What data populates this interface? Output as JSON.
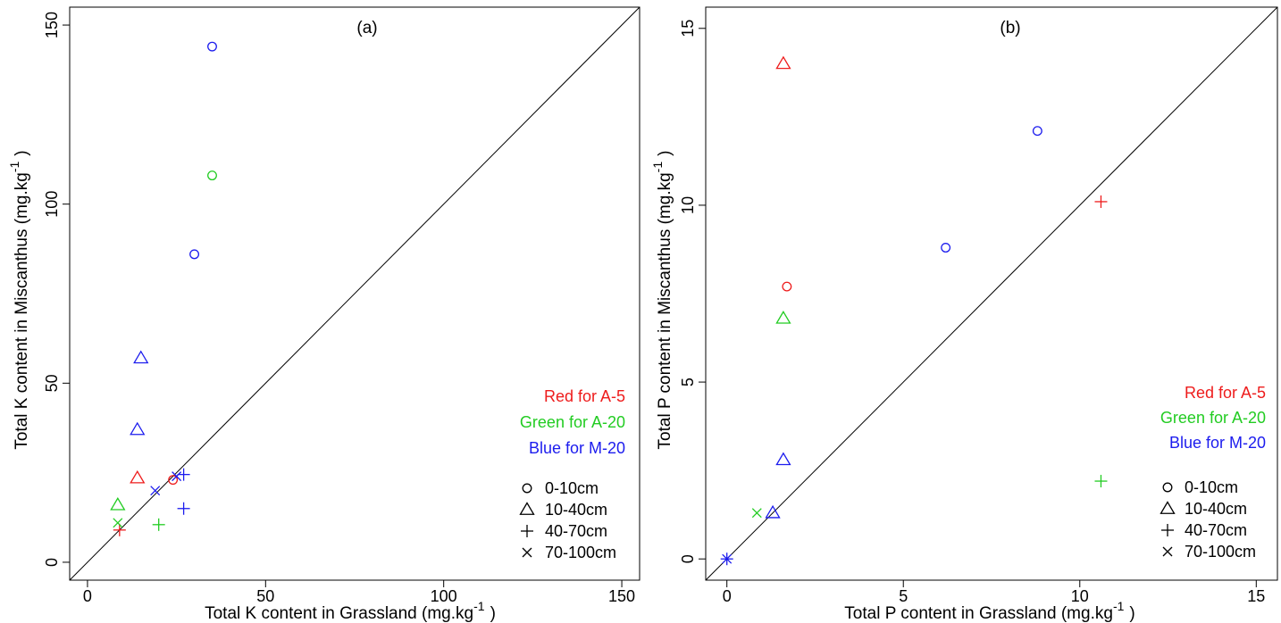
{
  "chart_data": [
    {
      "type": "scatter",
      "panel_label": "(a)",
      "xlabel": "Total K content in Grassland",
      "xlabel_unit": "(mg.kg",
      "xlabel_sup": "-1",
      "xlabel_close": ")",
      "ylabel": "Total K content in Miscanthus",
      "ylabel_unit": "(mg.kg",
      "ylabel_sup": "-1",
      "ylabel_close": ")",
      "xlim": [
        -5,
        155
      ],
      "ylim": [
        -5,
        155
      ],
      "xticks": [
        0,
        50,
        100,
        150
      ],
      "yticks": [
        0,
        50,
        100,
        150
      ],
      "reference_line": "y = x",
      "grid": false,
      "color_legend": [
        {
          "text": "Red for A-5",
          "color": "#ee1c1c"
        },
        {
          "text": "Green for A-20",
          "color": "#22cc22"
        },
        {
          "text": "Blue for M-20",
          "color": "#1c1cee"
        }
      ],
      "shape_legend": [
        {
          "text": "0-10cm",
          "symbol": "circle"
        },
        {
          "text": "10-40cm",
          "symbol": "triangle"
        },
        {
          "text": "40-70cm",
          "symbol": "plus"
        },
        {
          "text": "70-100cm",
          "symbol": "cross"
        }
      ],
      "legend_position": "bottom-right",
      "points": [
        {
          "x": 35,
          "y": 144,
          "site": "M-20",
          "depth": "0-10cm"
        },
        {
          "x": 35,
          "y": 108,
          "site": "A-20",
          "depth": "0-10cm"
        },
        {
          "x": 30,
          "y": 86,
          "site": "M-20",
          "depth": "0-10cm"
        },
        {
          "x": 24,
          "y": 23,
          "site": "A-5",
          "depth": "0-10cm"
        },
        {
          "x": 15,
          "y": 57,
          "site": "M-20",
          "depth": "10-40cm"
        },
        {
          "x": 14,
          "y": 37,
          "site": "M-20",
          "depth": "10-40cm"
        },
        {
          "x": 14,
          "y": 23.5,
          "site": "A-5",
          "depth": "10-40cm"
        },
        {
          "x": 8.5,
          "y": 16,
          "site": "A-20",
          "depth": "10-40cm"
        },
        {
          "x": 27,
          "y": 24.5,
          "site": "M-20",
          "depth": "40-70cm"
        },
        {
          "x": 27,
          "y": 15,
          "site": "M-20",
          "depth": "40-70cm"
        },
        {
          "x": 20,
          "y": 10.5,
          "site": "A-20",
          "depth": "40-70cm"
        },
        {
          "x": 9,
          "y": 9,
          "site": "A-5",
          "depth": "40-70cm"
        },
        {
          "x": 25,
          "y": 24,
          "site": "M-20",
          "depth": "70-100cm"
        },
        {
          "x": 19,
          "y": 20,
          "site": "M-20",
          "depth": "70-100cm"
        },
        {
          "x": 8.5,
          "y": 11,
          "site": "A-20",
          "depth": "70-100cm"
        }
      ]
    },
    {
      "type": "scatter",
      "panel_label": "(b)",
      "xlabel": "Total P content in Grassland",
      "xlabel_unit": "(mg.kg",
      "xlabel_sup": "-1",
      "xlabel_close": ")",
      "ylabel": "Total P content in Miscanthus",
      "ylabel_unit": "(mg.kg",
      "ylabel_sup": "-1",
      "ylabel_close": ")",
      "xlim": [
        -0.6,
        15.6
      ],
      "ylim": [
        -0.6,
        15.6
      ],
      "xticks": [
        0,
        5,
        10,
        15
      ],
      "yticks": [
        0,
        5,
        10,
        15
      ],
      "reference_line": "y = x",
      "grid": false,
      "color_legend": [
        {
          "text": "Red for A-5",
          "color": "#ee1c1c"
        },
        {
          "text": "Green for A-20",
          "color": "#22cc22"
        },
        {
          "text": "Blue for M-20",
          "color": "#1c1cee"
        }
      ],
      "shape_legend": [
        {
          "text": "0-10cm",
          "symbol": "circle"
        },
        {
          "text": "10-40cm",
          "symbol": "triangle"
        },
        {
          "text": "40-70cm",
          "symbol": "plus"
        },
        {
          "text": "70-100cm",
          "symbol": "cross"
        }
      ],
      "legend_position": "bottom-right",
      "points": [
        {
          "x": 8.8,
          "y": 12.1,
          "site": "M-20",
          "depth": "0-10cm"
        },
        {
          "x": 6.2,
          "y": 8.8,
          "site": "M-20",
          "depth": "0-10cm"
        },
        {
          "x": 1.7,
          "y": 7.7,
          "site": "A-5",
          "depth": "0-10cm"
        },
        {
          "x": 1.6,
          "y": 14.0,
          "site": "A-5",
          "depth": "10-40cm"
        },
        {
          "x": 1.6,
          "y": 6.8,
          "site": "A-20",
          "depth": "10-40cm"
        },
        {
          "x": 1.6,
          "y": 2.8,
          "site": "M-20",
          "depth": "10-40cm"
        },
        {
          "x": 1.3,
          "y": 1.3,
          "site": "M-20",
          "depth": "10-40cm"
        },
        {
          "x": 10.6,
          "y": 10.1,
          "site": "A-5",
          "depth": "40-70cm"
        },
        {
          "x": 10.6,
          "y": 2.2,
          "site": "A-20",
          "depth": "40-70cm"
        },
        {
          "x": 0.85,
          "y": 1.3,
          "site": "A-20",
          "depth": "70-100cm"
        },
        {
          "x": 0.0,
          "y": 0.0,
          "site": "M-20",
          "depth": "40-70cm"
        },
        {
          "x": 0.0,
          "y": 0.0,
          "site": "M-20",
          "depth": "70-100cm"
        }
      ]
    }
  ],
  "site_colors": {
    "A-5": "#ee1c1c",
    "A-20": "#22cc22",
    "M-20": "#1c1cee"
  }
}
